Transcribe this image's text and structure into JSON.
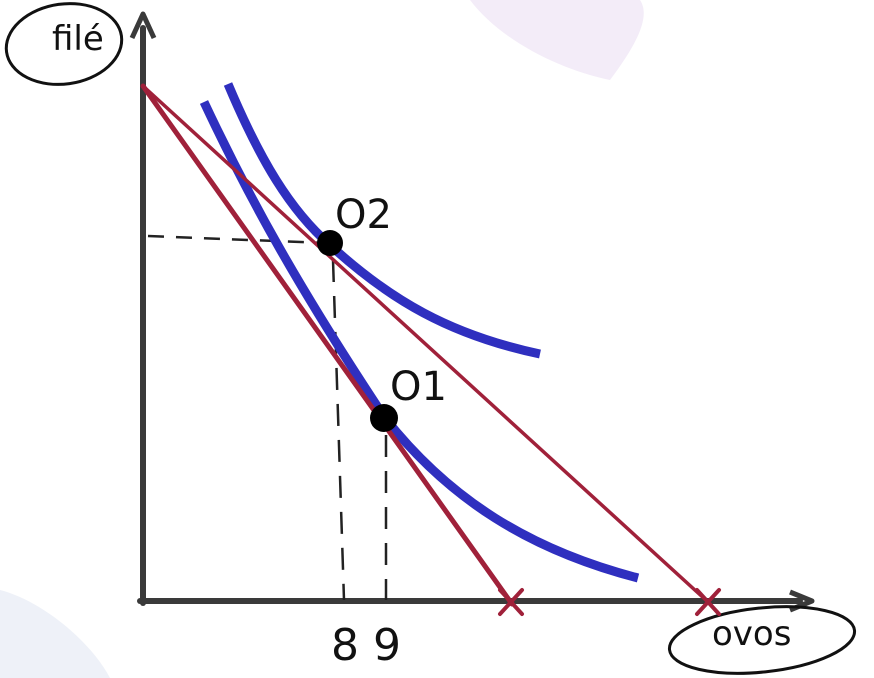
{
  "diagram": {
    "y_axis_label": "filé",
    "x_axis_label": "ovos",
    "points": [
      {
        "id": "O2",
        "label": "O2"
      },
      {
        "id": "O1",
        "label": "O1"
      }
    ],
    "x_ticks": [
      "8",
      "9"
    ],
    "colors": {
      "axis": "#3a3a3a",
      "budget_line": "#a0213a",
      "indifference_curve": "#2f2fbf",
      "point": "#000000",
      "guide": "#222222",
      "background_shape": "#f1eaf7"
    }
  }
}
